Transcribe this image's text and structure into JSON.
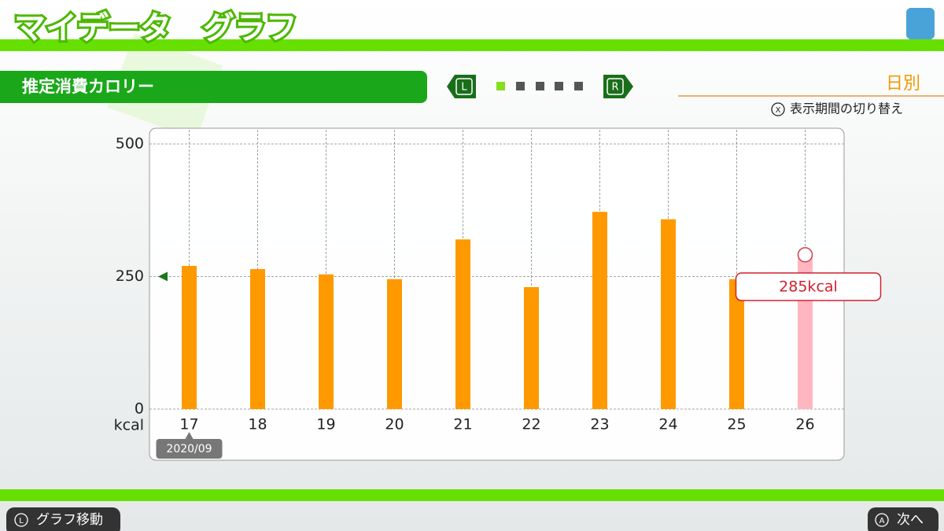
{
  "header": {
    "title": "マイデータ　グラフ"
  },
  "section": {
    "title": "推定消費カロリー",
    "left_button": "L",
    "right_button": "R",
    "period": "日別",
    "hint_button": "X",
    "hint": "表示期間の切り替え"
  },
  "footer": {
    "left_button": "L",
    "left": "グラフ移動",
    "right_button": "A",
    "right": "次へ"
  },
  "chart_data": {
    "type": "bar",
    "categories": [
      "17",
      "18",
      "19",
      "20",
      "21",
      "22",
      "23",
      "24",
      "25",
      "26"
    ],
    "x_label": "2020/09",
    "y_unit": "kcal",
    "values": [
      270,
      264,
      254,
      245,
      320,
      230,
      372,
      358,
      245,
      285
    ],
    "value_labels": [
      null,
      null,
      null,
      null,
      null,
      null,
      null,
      null,
      null,
      "285kcal"
    ],
    "colors": [
      "#ff9900",
      "#ff9900",
      "#ff9900",
      "#ff9900",
      "#ff9900",
      "#ff9900",
      "#ff9900",
      "#ff9900",
      "#ff9900",
      "#ffb6c1"
    ],
    "ylim": [
      0,
      500
    ],
    "yticks": [
      0,
      250,
      500
    ],
    "grid": true
  }
}
